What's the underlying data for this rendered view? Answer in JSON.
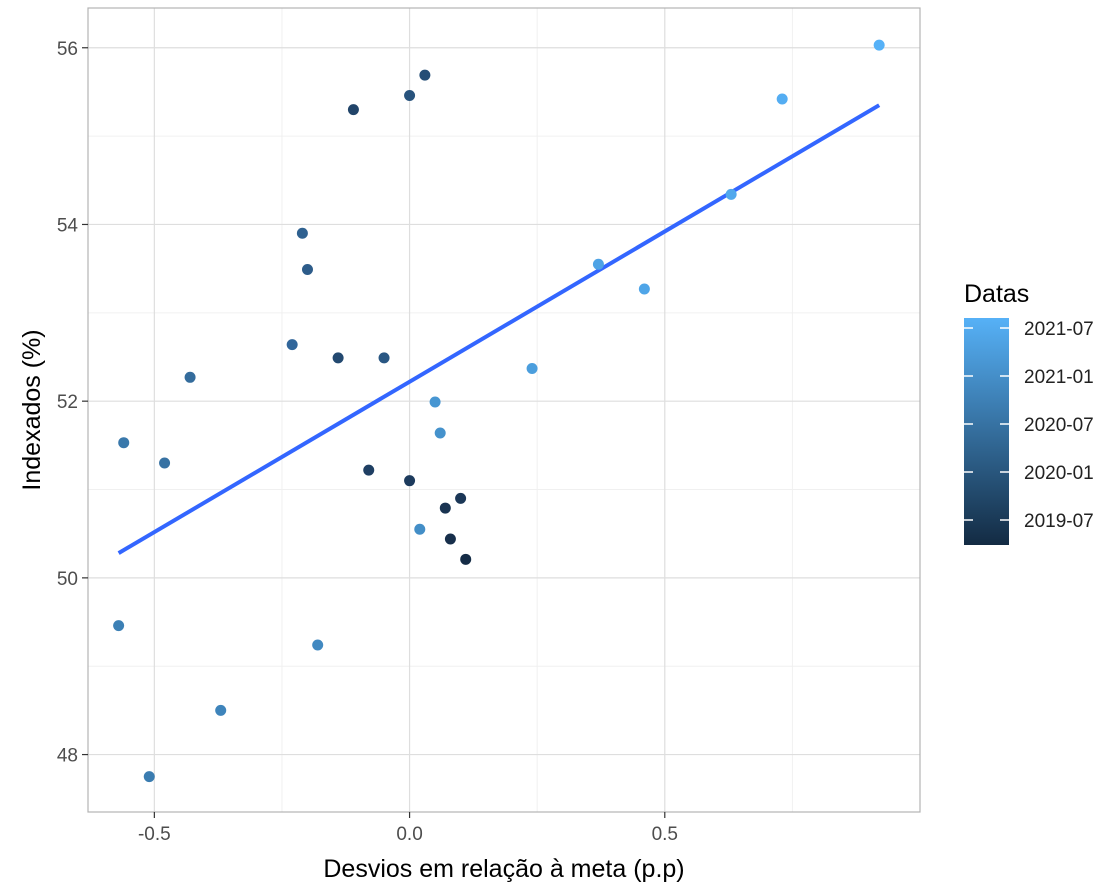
{
  "chart_data": {
    "type": "scatter",
    "xlabel": "Desvios em relação à meta (p.p)",
    "ylabel": "Indexados (%)",
    "xlim": [
      -0.63,
      1.0
    ],
    "ylim": [
      47.35,
      56.45
    ],
    "x_ticks": [
      -0.5,
      0.0,
      0.5
    ],
    "x_tick_labels": [
      "-0.5",
      "0.0",
      "0.5"
    ],
    "y_ticks": [
      48,
      50,
      52,
      54,
      56
    ],
    "y_tick_labels": [
      "48",
      "50",
      "52",
      "54",
      "56"
    ],
    "grid": true,
    "legend": {
      "title": "Datas",
      "position": "right",
      "labels": [
        "2021-07",
        "2021-01",
        "2020-07",
        "2020-01",
        "2019-07"
      ],
      "colors": [
        "#56B1F7",
        "#4690CE",
        "#3A77AD",
        "#2A5A85",
        "#1A3E5F"
      ],
      "gradient_low": "#132B43",
      "gradient_high": "#56B1F7"
    },
    "trend_line": {
      "color": "#3366FF",
      "x": [
        -0.57,
        0.92
      ],
      "y": [
        50.28,
        55.35
      ]
    },
    "points": [
      {
        "x": 0.92,
        "y": 56.03,
        "color": "#56B1F7"
      },
      {
        "x": 0.73,
        "y": 55.42,
        "color": "#54ADF2"
      },
      {
        "x": 0.63,
        "y": 54.34,
        "color": "#51A8EC"
      },
      {
        "x": 0.37,
        "y": 53.55,
        "color": "#4EA3E5"
      },
      {
        "x": 0.46,
        "y": 53.27,
        "color": "#4FA5E8"
      },
      {
        "x": 0.24,
        "y": 52.37,
        "color": "#4B9EDD"
      },
      {
        "x": 0.05,
        "y": 51.99,
        "color": "#4796D2"
      },
      {
        "x": 0.06,
        "y": 51.64,
        "color": "#4592CC"
      },
      {
        "x": 0.02,
        "y": 50.55,
        "color": "#438EC7"
      },
      {
        "x": -0.18,
        "y": 49.24,
        "color": "#4189C1"
      },
      {
        "x": -0.37,
        "y": 48.5,
        "color": "#3E84BB"
      },
      {
        "x": -0.57,
        "y": 49.46,
        "color": "#3C80B5"
      },
      {
        "x": -0.51,
        "y": 47.75,
        "color": "#3A7CB0"
      },
      {
        "x": -0.56,
        "y": 51.53,
        "color": "#3978AB"
      },
      {
        "x": -0.48,
        "y": 51.3,
        "color": "#3772A3"
      },
      {
        "x": -0.43,
        "y": 52.27,
        "color": "#346C9C"
      },
      {
        "x": -0.23,
        "y": 52.64,
        "color": "#31669A"
      },
      {
        "x": -0.21,
        "y": 53.9,
        "color": "#2F6190"
      },
      {
        "x": -0.2,
        "y": 53.49,
        "color": "#2D5C8A"
      },
      {
        "x": -0.05,
        "y": 52.49,
        "color": "#2A5783"
      },
      {
        "x": 0.0,
        "y": 55.46,
        "color": "#28537D"
      },
      {
        "x": 0.03,
        "y": 55.69,
        "color": "#254E76"
      },
      {
        "x": -0.14,
        "y": 52.49,
        "color": "#234970"
      },
      {
        "x": -0.11,
        "y": 55.3,
        "color": "#214469"
      },
      {
        "x": -0.08,
        "y": 51.22,
        "color": "#1F3F63"
      },
      {
        "x": 0.0,
        "y": 51.1,
        "color": "#1D3B5D"
      },
      {
        "x": 0.1,
        "y": 50.9,
        "color": "#1B3757"
      },
      {
        "x": 0.07,
        "y": 50.79,
        "color": "#193351"
      },
      {
        "x": 0.08,
        "y": 50.44,
        "color": "#172F4B"
      },
      {
        "x": 0.11,
        "y": 50.21,
        "color": "#152C46"
      }
    ]
  }
}
